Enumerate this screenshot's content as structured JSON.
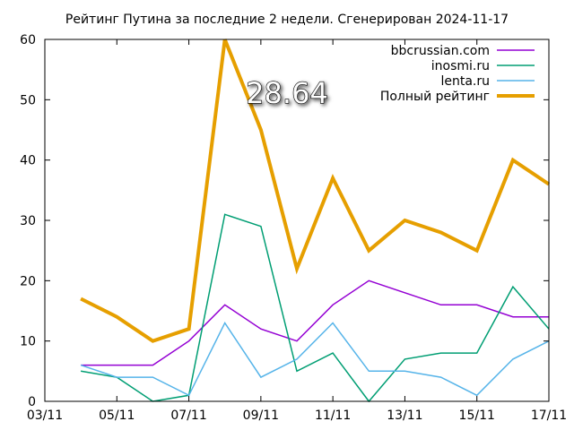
{
  "chart_data": {
    "type": "line",
    "title": "Рейтинг Путина за последние 2 недели. Сгенерирован 2024-11-17",
    "x": [
      "04/11",
      "05/11",
      "06/11",
      "07/11",
      "08/11",
      "09/11",
      "10/11",
      "11/11",
      "12/11",
      "13/11",
      "14/11",
      "15/11",
      "16/11",
      "17/11"
    ],
    "x_ticks": [
      "03/11",
      "05/11",
      "07/11",
      "09/11",
      "11/11",
      "13/11",
      "15/11",
      "17/11"
    ],
    "y_ticks": [
      "0",
      "10",
      "20",
      "30",
      "40",
      "50",
      "60"
    ],
    "ylim": [
      0,
      60
    ],
    "xlim": [
      "03/11",
      "17/11"
    ],
    "grid": false,
    "legend_position": "top-right",
    "series": [
      {
        "name": "bbcrussian.com",
        "color": "#9400d3",
        "width": 1.5,
        "values": [
          6,
          6,
          6,
          10,
          16,
          12,
          10,
          16,
          20,
          18,
          16,
          16,
          14,
          14
        ]
      },
      {
        "name": "inosmi.ru",
        "color": "#009e73",
        "width": 1.5,
        "values": [
          5,
          4,
          0,
          1,
          31,
          29,
          5,
          8,
          0,
          7,
          8,
          8,
          19,
          12
        ]
      },
      {
        "name": "lenta.ru",
        "color": "#56b4e9",
        "width": 1.5,
        "values": [
          6,
          4,
          4,
          1,
          13,
          4,
          7,
          13,
          5,
          5,
          4,
          1,
          7,
          10
        ]
      },
      {
        "name": "Полный рейтинг",
        "color": "#e69f00",
        "width": 4,
        "values": [
          17,
          14,
          10,
          12,
          60,
          45,
          22,
          37,
          25,
          30,
          28,
          25,
          40,
          36
        ]
      }
    ],
    "annotation": "28.64"
  }
}
